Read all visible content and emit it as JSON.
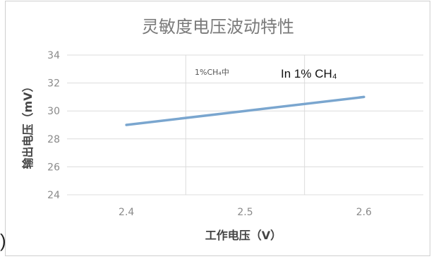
{
  "chart_data": {
    "type": "line",
    "title": "灵敏度电压波动特性",
    "xlabel": "工作电压（V）",
    "ylabel": "输出电压（mV）",
    "x": [
      2.4,
      2.5,
      2.6
    ],
    "series": [
      {
        "values": [
          29.0,
          30.0,
          31.0
        ],
        "color": "#7aa6cf"
      }
    ],
    "xlim": [
      2.35,
      2.65
    ],
    "ylim": [
      24,
      34
    ],
    "x_ticks": [
      "2.4",
      "2.5",
      "2.6"
    ],
    "y_ticks": [
      "24",
      "26",
      "28",
      "30",
      "32",
      "34"
    ],
    "grid": true,
    "annotations": {
      "small": "1%CH₄中",
      "large": "In 1% CH₄"
    }
  },
  "page": {
    "stray_paren": ")"
  }
}
